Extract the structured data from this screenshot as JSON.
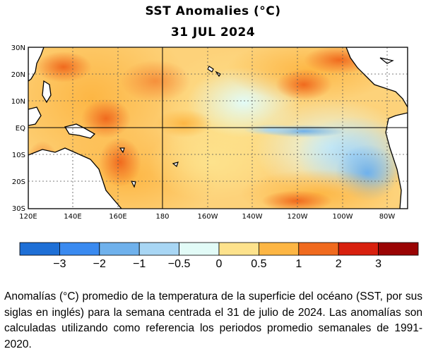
{
  "title": "SST Anomalies (°C)",
  "date": "31 JUL 2024",
  "map": {
    "lat_labels": [
      "30N",
      "20N",
      "10N",
      "EQ",
      "10S",
      "20S",
      "30S"
    ],
    "lon_labels": [
      "120E",
      "140E",
      "160E",
      "180",
      "160W",
      "140W",
      "120W",
      "100W",
      "80W"
    ],
    "grid": "dashed",
    "colors": {
      "strong_warm": "#f06a1e",
      "warm": "#fdb644",
      "mild_warm": "#fde28c",
      "neutral": "#e2fbf7",
      "mild_cool": "#a8d6f4",
      "cool": "#6fb1ec",
      "land": "#ffffff"
    }
  },
  "colorbar": {
    "colors": [
      "#1e6fd6",
      "#3a8af0",
      "#6fb1ec",
      "#a8d6f4",
      "#e2fbf7",
      "#fde28c",
      "#fdb644",
      "#f06a1e",
      "#d8200e",
      "#9a0404"
    ],
    "tick_labels": [
      "−3",
      "−2",
      "−1",
      "−0.5",
      "0",
      "0.5",
      "1",
      "2",
      "3"
    ]
  },
  "caption": "Anomalías (°C) promedio de la temperatura de la superficie del océano (SST, por sus siglas en inglés) para la semana centrada el 31 de julio de 2024. Las anomalías son calculadas utilizando como referencia los periodos promedio semanales de 1991-2020."
}
